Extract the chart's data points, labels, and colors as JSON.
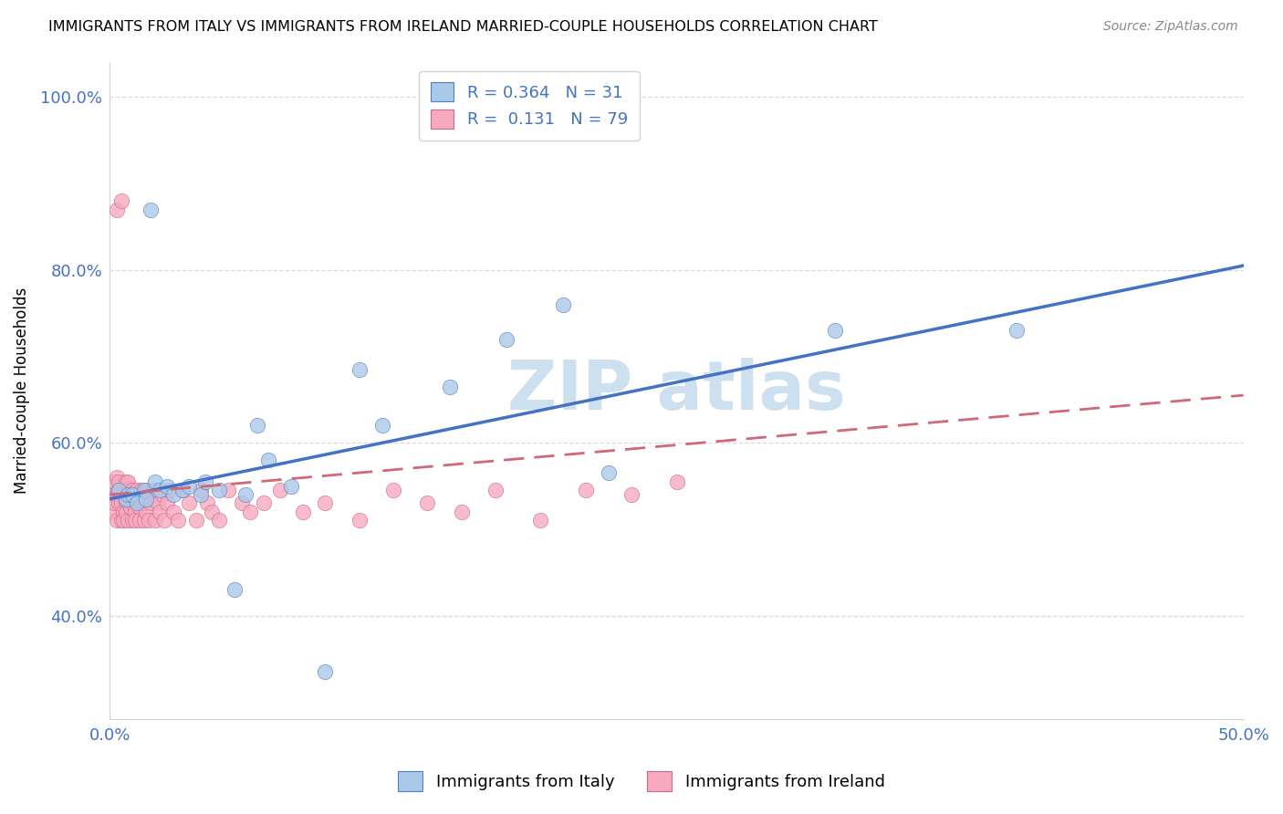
{
  "title": "IMMIGRANTS FROM ITALY VS IMMIGRANTS FROM IRELAND MARRIED-COUPLE HOUSEHOLDS CORRELATION CHART",
  "source": "Source: ZipAtlas.com",
  "ylabel": "Married-couple Households",
  "xlim": [
    0.0,
    0.5
  ],
  "ylim": [
    0.28,
    1.04
  ],
  "y_ticks": [
    0.4,
    0.6,
    0.8,
    1.0
  ],
  "y_tick_labels": [
    "40.0%",
    "60.0%",
    "80.0%",
    "100.0%"
  ],
  "italy_R": 0.364,
  "italy_N": 31,
  "ireland_R": 0.131,
  "ireland_N": 79,
  "italy_color": "#aac8e8",
  "ireland_color": "#f5aabf",
  "italy_edge_color": "#5080c0",
  "ireland_edge_color": "#d06888",
  "italy_line_color": "#4472c4",
  "ireland_line_color": "#d06878",
  "watermark_color": "#cce0f0",
  "italy_x": [
    0.004,
    0.007,
    0.008,
    0.01,
    0.012,
    0.015,
    0.016,
    0.018,
    0.02,
    0.022,
    0.025,
    0.028,
    0.032,
    0.035,
    0.04,
    0.042,
    0.048,
    0.055,
    0.06,
    0.065,
    0.07,
    0.08,
    0.095,
    0.11,
    0.12,
    0.15,
    0.175,
    0.2,
    0.22,
    0.32,
    0.4
  ],
  "italy_y": [
    0.545,
    0.535,
    0.54,
    0.54,
    0.53,
    0.545,
    0.535,
    0.87,
    0.555,
    0.545,
    0.55,
    0.54,
    0.545,
    0.55,
    0.54,
    0.555,
    0.545,
    0.43,
    0.54,
    0.62,
    0.58,
    0.55,
    0.335,
    0.685,
    0.62,
    0.665,
    0.72,
    0.76,
    0.565,
    0.73,
    0.73
  ],
  "ireland_x": [
    0.001,
    0.001,
    0.002,
    0.002,
    0.002,
    0.003,
    0.003,
    0.003,
    0.003,
    0.004,
    0.004,
    0.004,
    0.005,
    0.005,
    0.005,
    0.005,
    0.006,
    0.006,
    0.006,
    0.007,
    0.007,
    0.007,
    0.007,
    0.008,
    0.008,
    0.008,
    0.008,
    0.009,
    0.009,
    0.01,
    0.01,
    0.01,
    0.011,
    0.011,
    0.012,
    0.012,
    0.013,
    0.013,
    0.014,
    0.014,
    0.015,
    0.015,
    0.016,
    0.016,
    0.017,
    0.018,
    0.019,
    0.02,
    0.021,
    0.022,
    0.023,
    0.024,
    0.025,
    0.026,
    0.028,
    0.03,
    0.032,
    0.035,
    0.038,
    0.04,
    0.043,
    0.045,
    0.048,
    0.052,
    0.058,
    0.062,
    0.068,
    0.075,
    0.085,
    0.095,
    0.11,
    0.125,
    0.14,
    0.155,
    0.17,
    0.19,
    0.21,
    0.23,
    0.25
  ],
  "ireland_y": [
    0.52,
    0.54,
    0.53,
    0.55,
    0.555,
    0.51,
    0.54,
    0.56,
    0.87,
    0.53,
    0.545,
    0.555,
    0.51,
    0.53,
    0.545,
    0.88,
    0.52,
    0.54,
    0.51,
    0.53,
    0.545,
    0.555,
    0.52,
    0.51,
    0.53,
    0.545,
    0.555,
    0.525,
    0.535,
    0.51,
    0.53,
    0.545,
    0.52,
    0.51,
    0.535,
    0.545,
    0.525,
    0.51,
    0.53,
    0.545,
    0.51,
    0.53,
    0.545,
    0.52,
    0.51,
    0.53,
    0.545,
    0.51,
    0.53,
    0.52,
    0.54,
    0.51,
    0.53,
    0.545,
    0.52,
    0.51,
    0.545,
    0.53,
    0.51,
    0.545,
    0.53,
    0.52,
    0.51,
    0.545,
    0.53,
    0.52,
    0.53,
    0.545,
    0.52,
    0.53,
    0.51,
    0.545,
    0.53,
    0.52,
    0.545,
    0.51,
    0.545,
    0.54,
    0.555
  ],
  "italy_line_x": [
    0.0,
    0.5
  ],
  "italy_line_y": [
    0.535,
    0.805
  ],
  "ireland_line_x": [
    0.0,
    0.5
  ],
  "ireland_line_y": [
    0.54,
    0.655
  ]
}
